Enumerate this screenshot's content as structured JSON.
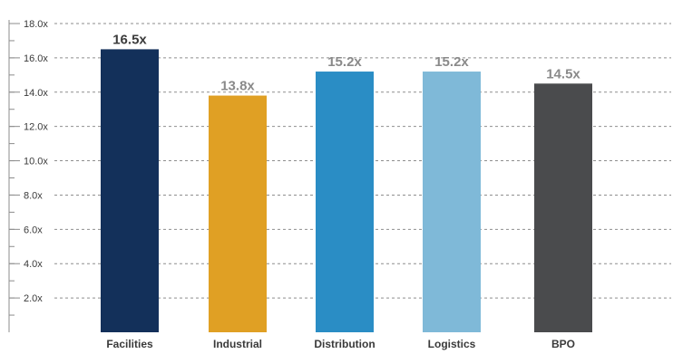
{
  "chart_data": {
    "type": "bar",
    "categories": [
      "Facilities",
      "Industrial",
      "Distribution",
      "Logistics",
      "BPO"
    ],
    "values": [
      16.5,
      13.8,
      15.2,
      15.2,
      14.5
    ],
    "data_labels": [
      "16.5x",
      "13.8x",
      "15.2x",
      "15.2x",
      "14.5x"
    ],
    "bar_colors": [
      "#13305a",
      "#e0a024",
      "#2a8dc5",
      "#7fb9d8",
      "#4a4b4d"
    ],
    "label_colors": [
      "#3c3c3c",
      "#8a8a8a",
      "#8a8a8a",
      "#8a8a8a",
      "#8a8a8a"
    ],
    "ylim": [
      0,
      18
    ],
    "yticks": [
      {
        "value": 2,
        "label": "2.0x"
      },
      {
        "value": 4,
        "label": "4.0x"
      },
      {
        "value": 6,
        "label": "6.0x"
      },
      {
        "value": 8,
        "label": "8.0x"
      },
      {
        "value": 10,
        "label": "10.0x"
      },
      {
        "value": 12,
        "label": "12.0x"
      },
      {
        "value": 14,
        "label": "14.0x"
      },
      {
        "value": 16,
        "label": "16.0x"
      },
      {
        "value": 18,
        "label": "18.0x"
      }
    ],
    "grid": true,
    "grid_style": "dashed",
    "legend": false,
    "title": "",
    "xlabel": "",
    "ylabel": ""
  }
}
